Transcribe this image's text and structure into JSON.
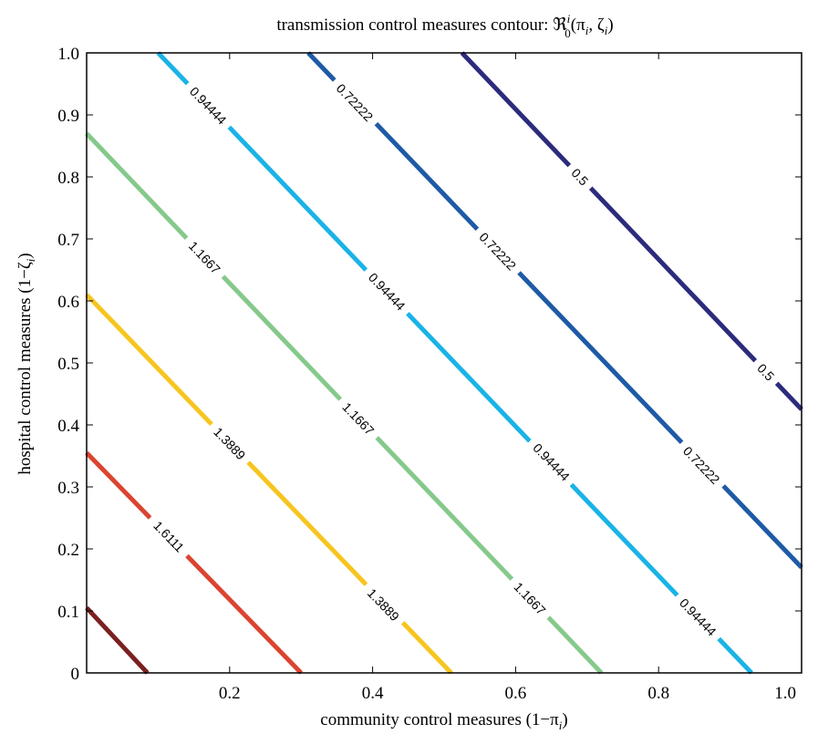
{
  "chart_data": {
    "type": "contour",
    "title": "transmission control measures contour: ℜ",
    "title_suffix": "(π",
    "title_pi_sub": "i",
    "title_sep": ", ζ",
    "title_zeta_sub": "i",
    "title_close": ")",
    "title_sup": "i",
    "title_sub": "0",
    "xlabel": "community control measures (1−π",
    "xlabel_sub": "i",
    "xlabel_close": ")",
    "ylabel": "hospital control measures (1−ζ",
    "ylabel_sub": "i",
    "ylabel_close": ")",
    "xlim": [
      0,
      1
    ],
    "ylim": [
      0,
      1
    ],
    "x_ticks": [
      {
        "value": 0.2,
        "label": "0.2"
      },
      {
        "value": 0.4,
        "label": "0.4"
      },
      {
        "value": 0.6,
        "label": "0.6"
      },
      {
        "value": 0.8,
        "label": "0.8"
      },
      {
        "value": 1.0,
        "label": "1.0"
      }
    ],
    "y_ticks": [
      {
        "value": 0,
        "label": "0"
      },
      {
        "value": 0.1,
        "label": "0.1"
      },
      {
        "value": 0.2,
        "label": "0.2"
      },
      {
        "value": 0.3,
        "label": "0.3"
      },
      {
        "value": 0.4,
        "label": "0.4"
      },
      {
        "value": 0.5,
        "label": "0.5"
      },
      {
        "value": 0.6,
        "label": "0.6"
      },
      {
        "value": 0.7,
        "label": "0.7"
      },
      {
        "value": 0.8,
        "label": "0.8"
      },
      {
        "value": 0.9,
        "label": "0.9"
      },
      {
        "value": 1.0,
        "label": "1.0"
      }
    ],
    "grid": false,
    "levels": [
      {
        "level": "0.5",
        "color": "#2c2b7c",
        "points": [
          [
            0.525,
            1.0
          ],
          [
            1.0,
            0.425
          ]
        ],
        "labels": [
          {
            "x": 0.69,
            "y": 0.8,
            "text": "0.5"
          },
          {
            "x": 0.95,
            "y": 0.485,
            "text": "0.5"
          }
        ]
      },
      {
        "level": "0.72222",
        "color": "#1e5aa6",
        "points": [
          [
            0.31,
            1.0
          ],
          [
            1.0,
            0.17
          ]
        ],
        "labels": [
          {
            "x": 0.375,
            "y": 0.92,
            "text": "0.72222"
          },
          {
            "x": 0.575,
            "y": 0.68,
            "text": "0.72222"
          },
          {
            "x": 0.86,
            "y": 0.335,
            "text": "0.72222"
          }
        ]
      },
      {
        "level": "0.94444",
        "color": "#1ab3e6",
        "points": [
          [
            0.1,
            1.0
          ],
          [
            0.93,
            0.0
          ]
        ],
        "labels": [
          {
            "x": 0.17,
            "y": 0.915,
            "text": "0.94444"
          },
          {
            "x": 0.42,
            "y": 0.615,
            "text": "0.94444"
          },
          {
            "x": 0.65,
            "y": 0.34,
            "text": "0.94444"
          },
          {
            "x": 0.855,
            "y": 0.09,
            "text": "0.94444"
          }
        ]
      },
      {
        "level": "1.1667",
        "color": "#85c98b",
        "points": [
          [
            0.0,
            0.87
          ],
          [
            0.72,
            0.0
          ]
        ],
        "labels": [
          {
            "x": 0.165,
            "y": 0.67,
            "text": "1.1667"
          },
          {
            "x": 0.38,
            "y": 0.41,
            "text": "1.1667"
          },
          {
            "x": 0.62,
            "y": 0.12,
            "text": "1.1667"
          }
        ]
      },
      {
        "level": "1.3889",
        "color": "#f7c51f",
        "points": [
          [
            0.0,
            0.61
          ],
          [
            0.51,
            0.0
          ]
        ],
        "labels": [
          {
            "x": 0.2,
            "y": 0.37,
            "text": "1.3889"
          },
          {
            "x": 0.415,
            "y": 0.11,
            "text": "1.3889"
          }
        ]
      },
      {
        "level": "1.6111",
        "color": "#db4430",
        "points": [
          [
            0.0,
            0.355
          ],
          [
            0.3,
            0.0
          ]
        ],
        "labels": [
          {
            "x": 0.115,
            "y": 0.22,
            "text": "1.6111"
          }
        ]
      },
      {
        "level": "",
        "color": "#7a2120",
        "points": [
          [
            0.0,
            0.105
          ],
          [
            0.085,
            0.0
          ]
        ],
        "labels": []
      }
    ]
  }
}
